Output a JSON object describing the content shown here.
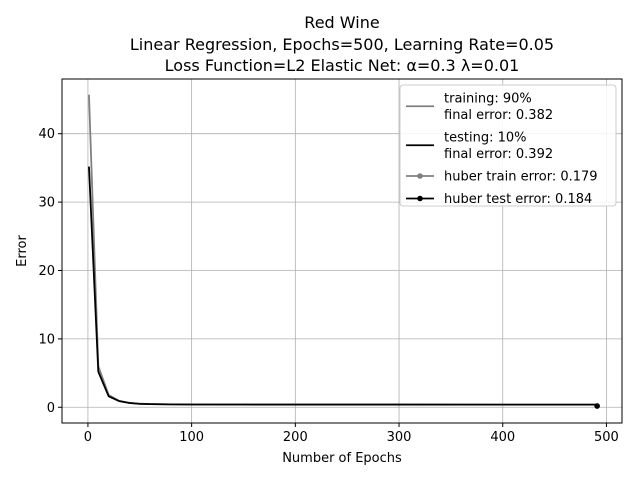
{
  "chart_data": {
    "type": "line",
    "title": [
      "Red Wine",
      "Linear Regression, Epochs=500, Learning Rate=0.05",
      "Loss Function=L2 Elastic Net: α=0.3 λ=0.01"
    ],
    "xlabel": "Number of Epochs",
    "ylabel": "Error",
    "xlim": [
      -25,
      515
    ],
    "ylim": [
      -2.3,
      48.0
    ],
    "xticks": [
      0,
      100,
      200,
      300,
      400,
      500
    ],
    "yticks": [
      0,
      10,
      20,
      30,
      40
    ],
    "grid": true,
    "legend_position": "top-right",
    "series": [
      {
        "name": "training: 90%\nfinal error: 0.382",
        "legend_lines": [
          "training: 90%",
          "final error: 0.382"
        ],
        "color": "#808080",
        "marker": "none",
        "x": [
          1,
          10,
          20,
          30,
          40,
          50,
          60,
          80,
          100,
          150,
          200,
          300,
          400,
          491
        ],
        "y": [
          45.7,
          6.0,
          1.8,
          0.95,
          0.65,
          0.52,
          0.47,
          0.42,
          0.4,
          0.39,
          0.385,
          0.383,
          0.382,
          0.382
        ]
      },
      {
        "name": "testing: 10%\nfinal error: 0.392",
        "legend_lines": [
          "testing: 10%",
          "final error: 0.392"
        ],
        "color": "#000000",
        "marker": "none",
        "x": [
          1,
          10,
          20,
          30,
          40,
          50,
          60,
          80,
          100,
          150,
          200,
          300,
          400,
          491
        ],
        "y": [
          35.2,
          5.2,
          1.6,
          0.9,
          0.62,
          0.5,
          0.46,
          0.42,
          0.41,
          0.4,
          0.395,
          0.393,
          0.392,
          0.392
        ]
      },
      {
        "name": "huber train error: 0.179",
        "legend_lines": [
          "huber train error: 0.179"
        ],
        "color": "#808080",
        "marker": "circle",
        "x": [
          491
        ],
        "y": [
          0.179
        ]
      },
      {
        "name": "huber test error: 0.184",
        "legend_lines": [
          "huber test error: 0.184"
        ],
        "color": "#000000",
        "marker": "circle",
        "x": [
          491
        ],
        "y": [
          0.184
        ]
      }
    ]
  }
}
